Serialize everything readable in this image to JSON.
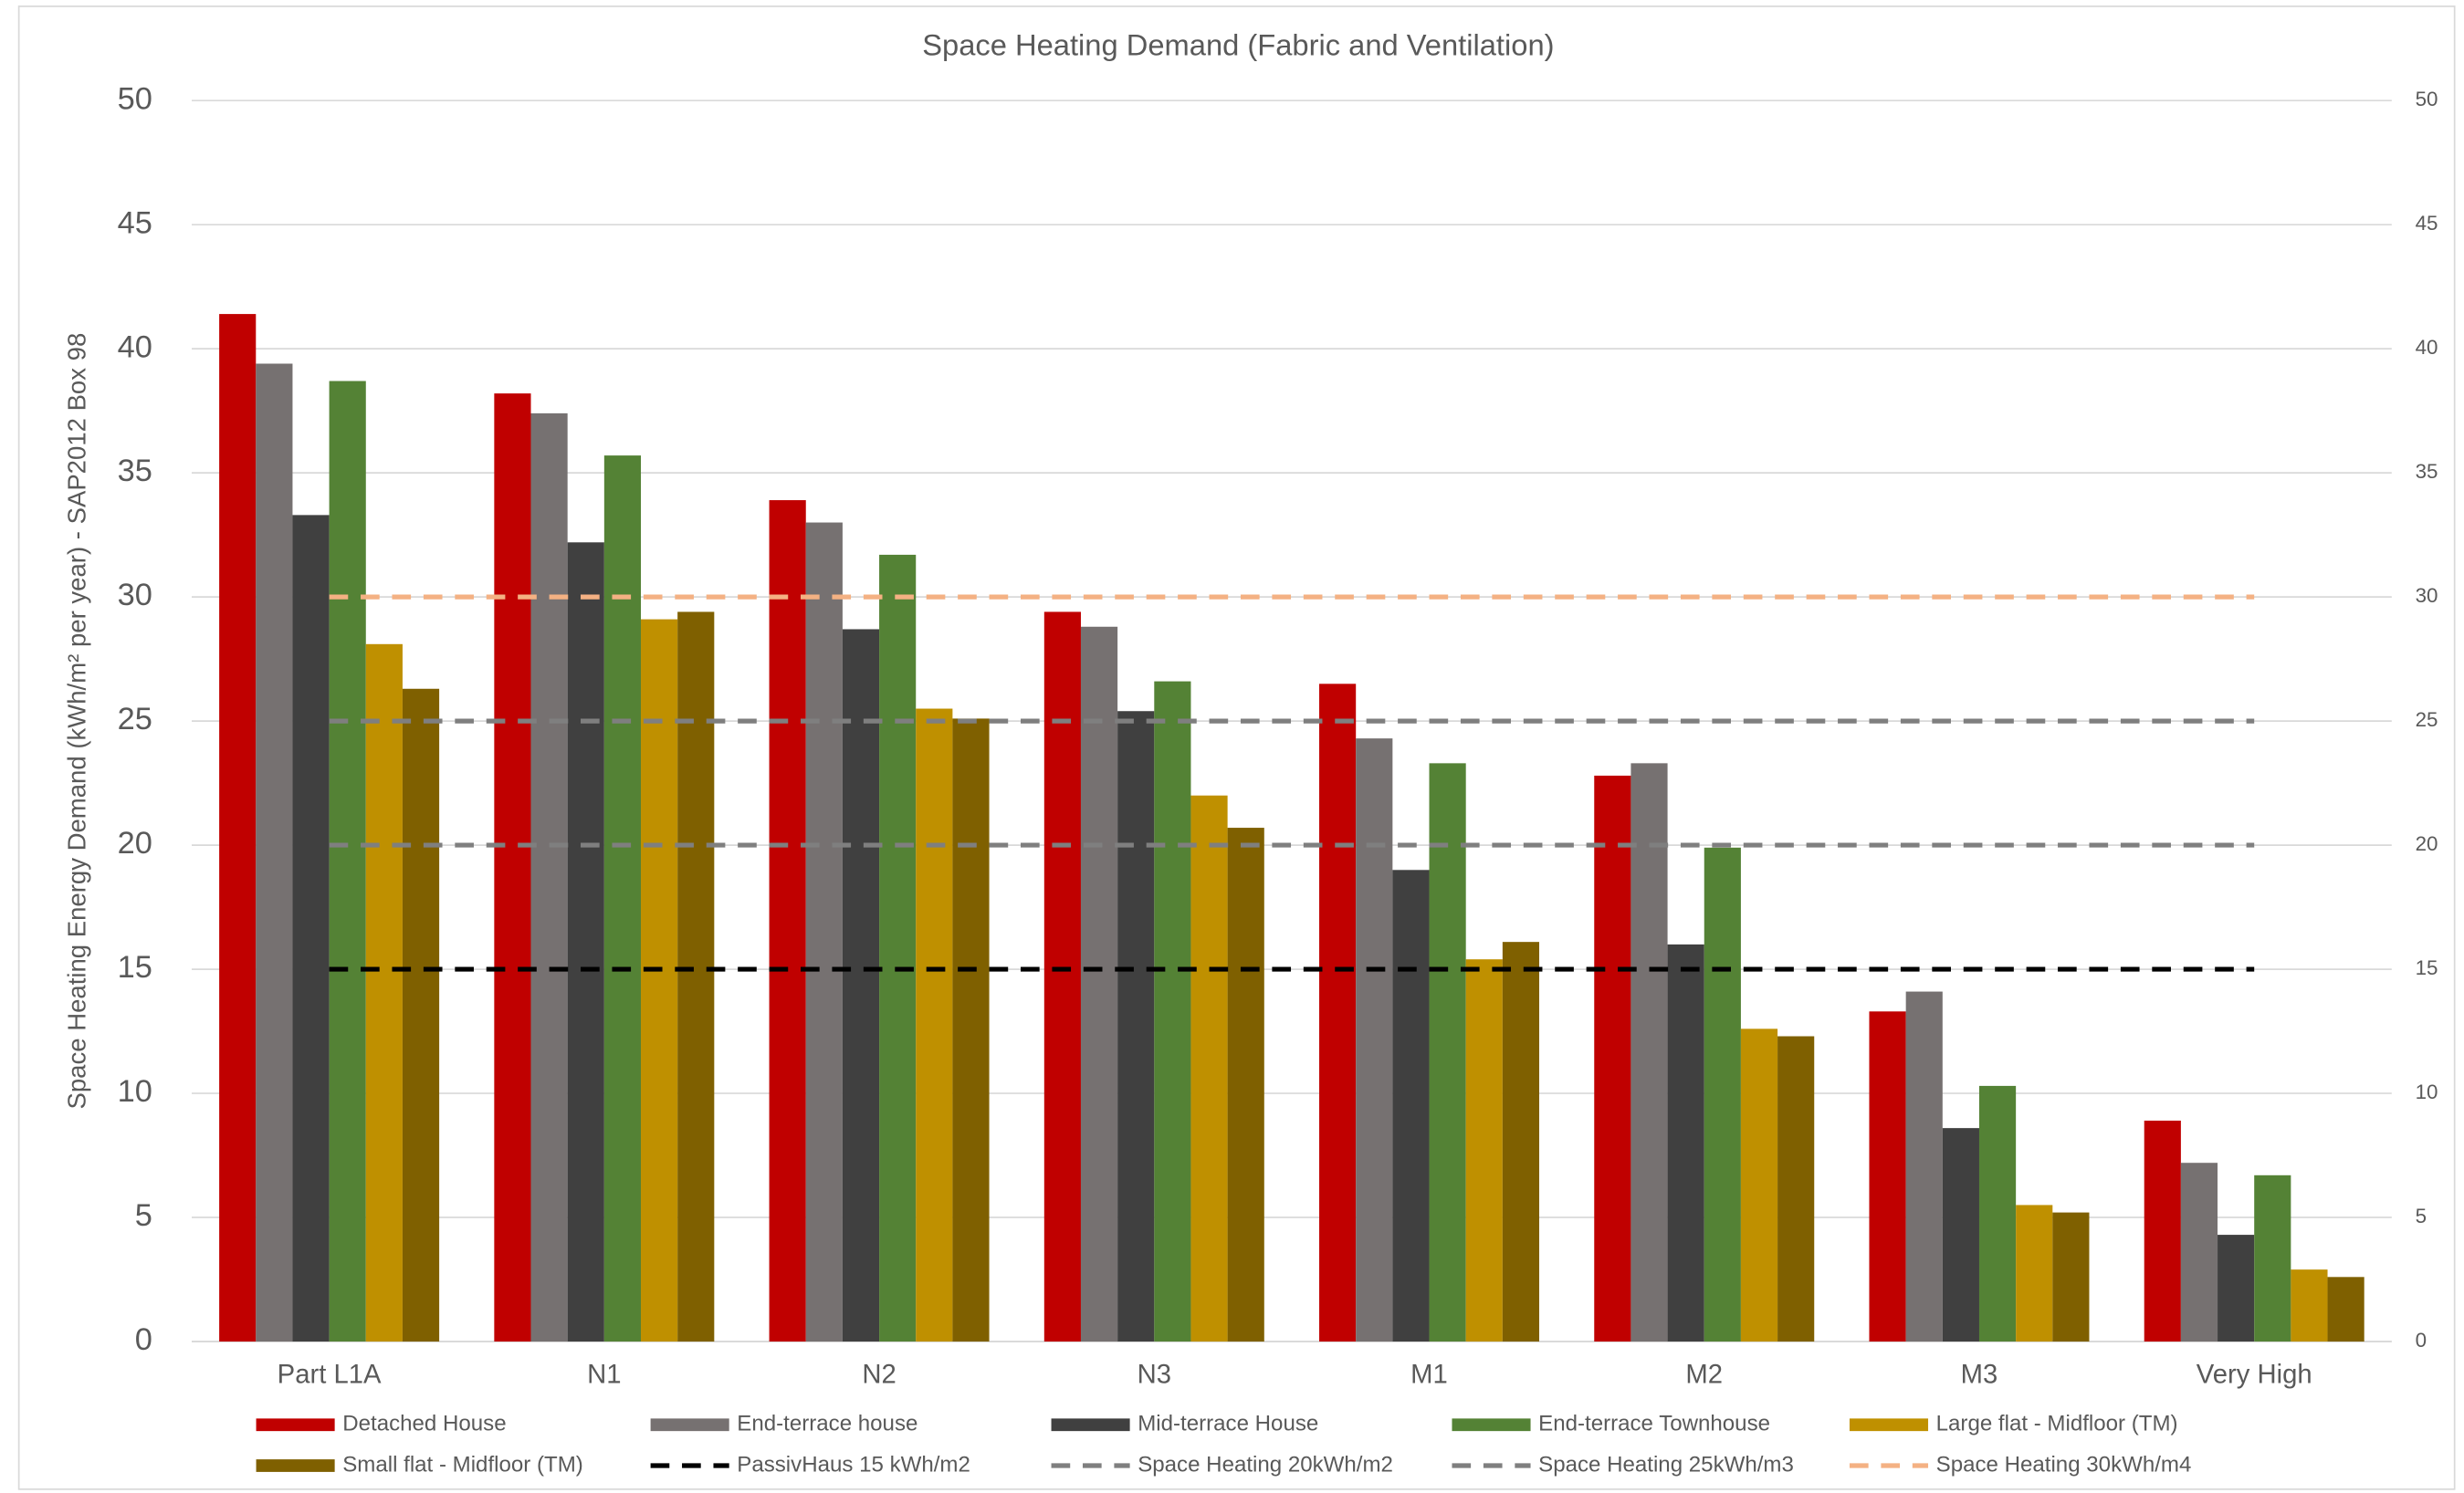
{
  "chart_data": {
    "type": "bar",
    "title": "Space Heating Demand (Fabric and Ventilation)",
    "y_label": "Space Heating Energy Demand (kWh/m² per year) - SAP2012 Box 98",
    "categories": [
      "Part L1A",
      "N1",
      "N2",
      "N3",
      "M1",
      "M2",
      "M3",
      "Very High"
    ],
    "series": [
      {
        "name": "Detached House",
        "type": "bar",
        "color": "#c00000",
        "values": [
          41.4,
          38.2,
          33.9,
          29.4,
          26.5,
          22.8,
          13.3,
          8.9
        ]
      },
      {
        "name": "End-terrace house",
        "type": "bar",
        "color": "#767171",
        "values": [
          39.4,
          37.4,
          33.0,
          28.8,
          24.3,
          23.3,
          14.1,
          7.2
        ]
      },
      {
        "name": "Mid-terrace House",
        "type": "bar",
        "color": "#404040",
        "values": [
          33.3,
          32.2,
          28.7,
          25.4,
          19.0,
          16.0,
          8.6,
          4.3
        ]
      },
      {
        "name": "End-terrace Townhouse",
        "type": "bar",
        "color": "#548235",
        "values": [
          38.7,
          35.7,
          31.7,
          26.6,
          23.3,
          19.9,
          10.3,
          6.7
        ]
      },
      {
        "name": "Large flat - Midfloor (TM)",
        "type": "bar",
        "color": "#bf9000",
        "values": [
          28.1,
          29.1,
          25.5,
          22.0,
          15.4,
          12.6,
          5.5,
          2.9
        ]
      },
      {
        "name": "Small flat - Midfloor (TM)",
        "type": "bar",
        "color": "#7f6000",
        "values": [
          26.3,
          29.4,
          25.1,
          20.7,
          16.1,
          12.3,
          5.2,
          2.6
        ]
      },
      {
        "name": "PassivHaus 15 kWh/m2",
        "type": "line",
        "dashed": true,
        "color": "#000000",
        "values": [
          15,
          15,
          15,
          15,
          15,
          15,
          15,
          15
        ]
      },
      {
        "name": "Space Heating 20kWh/m2",
        "type": "line",
        "dashed": true,
        "color": "#7f7f7f",
        "values": [
          20,
          20,
          20,
          20,
          20,
          20,
          20,
          20
        ]
      },
      {
        "name": "Space Heating 25kWh/m3",
        "type": "line",
        "dashed": true,
        "color": "#7f7f7f",
        "values": [
          25,
          25,
          25,
          25,
          25,
          25,
          25,
          25
        ]
      },
      {
        "name": "Space Heating 30kWh/m4",
        "type": "line",
        "dashed": true,
        "color": "#f4b183",
        "values": [
          30,
          30,
          30,
          30,
          30,
          30,
          30,
          30
        ]
      }
    ],
    "ylim": [
      0,
      50
    ],
    "yticks": [
      0,
      5,
      10,
      15,
      20,
      25,
      30,
      35,
      40,
      45,
      50
    ],
    "y2lim": [
      0,
      50
    ],
    "y2ticks": [
      0,
      5,
      10,
      15,
      20,
      25,
      30,
      35,
      40,
      45,
      50
    ],
    "grid": true,
    "legend": "bottom"
  }
}
